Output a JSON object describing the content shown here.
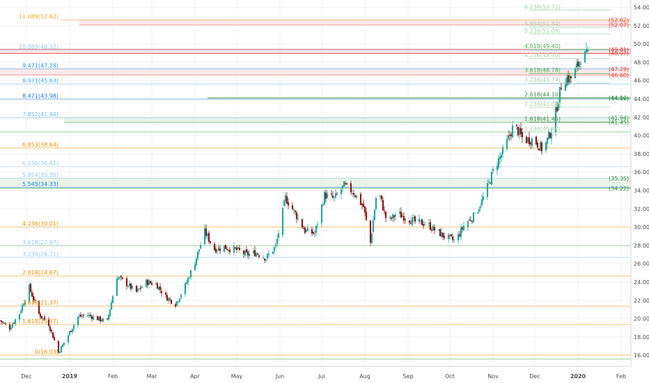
{
  "chart_data": {
    "type": "candlestick",
    "title": "",
    "ylim": [
      14.8,
      54.8
    ],
    "y_ticks": [
      16,
      18,
      20,
      22,
      24,
      26,
      28,
      30,
      32,
      34,
      36,
      38,
      40,
      42,
      44,
      46,
      48,
      50,
      52,
      54
    ],
    "x_range": [
      "2018-11-12",
      "2020-02-08"
    ],
    "x_ticks": [
      {
        "label": "Dec",
        "date": "2018-12-01"
      },
      {
        "label": "2019",
        "date": "2019-01-01"
      },
      {
        "label": "Feb",
        "date": "2019-02-01"
      },
      {
        "label": "Mar",
        "date": "2019-03-01"
      },
      {
        "label": "Apr",
        "date": "2019-04-01"
      },
      {
        "label": "May",
        "date": "2019-05-01"
      },
      {
        "label": "Jun",
        "date": "2019-06-01"
      },
      {
        "label": "Jul",
        "date": "2019-07-01"
      },
      {
        "label": "Aug",
        "date": "2019-08-01"
      },
      {
        "label": "Sep",
        "date": "2019-09-01"
      },
      {
        "label": "Oct",
        "date": "2019-10-01"
      },
      {
        "label": "Nov",
        "date": "2019-11-01"
      },
      {
        "label": "Dec",
        "date": "2019-12-01"
      },
      {
        "label": "2020",
        "date": "2020-01-01"
      },
      {
        "label": "Feb",
        "date": "2020-02-01"
      }
    ],
    "up_color": "#26a69a",
    "down_color": "#8b1a1a",
    "price_path": [
      {
        "date": "2018-11-12",
        "price": 19.8
      },
      {
        "date": "2018-11-19",
        "price": 19.0
      },
      {
        "date": "2018-11-26",
        "price": 20.6
      },
      {
        "date": "2018-12-03",
        "price": 23.4
      },
      {
        "date": "2018-12-10",
        "price": 20.5
      },
      {
        "date": "2018-12-17",
        "price": 19.4
      },
      {
        "date": "2018-12-24",
        "price": 16.3
      },
      {
        "date": "2018-12-31",
        "price": 18.2
      },
      {
        "date": "2019-01-07",
        "price": 20.2
      },
      {
        "date": "2019-01-14",
        "price": 20.4
      },
      {
        "date": "2019-01-21",
        "price": 20.0
      },
      {
        "date": "2019-01-28",
        "price": 19.7
      },
      {
        "date": "2019-02-04",
        "price": 24.6
      },
      {
        "date": "2019-02-11",
        "price": 23.8
      },
      {
        "date": "2019-02-18",
        "price": 22.9
      },
      {
        "date": "2019-02-25",
        "price": 24.0
      },
      {
        "date": "2019-03-04",
        "price": 23.8
      },
      {
        "date": "2019-03-11",
        "price": 22.4
      },
      {
        "date": "2019-03-18",
        "price": 21.6
      },
      {
        "date": "2019-03-25",
        "price": 23.6
      },
      {
        "date": "2019-04-01",
        "price": 26.2
      },
      {
        "date": "2019-04-08",
        "price": 29.5
      },
      {
        "date": "2019-04-15",
        "price": 27.6
      },
      {
        "date": "2019-04-22",
        "price": 27.8
      },
      {
        "date": "2019-05-01",
        "price": 27.5
      },
      {
        "date": "2019-05-08",
        "price": 27.0
      },
      {
        "date": "2019-05-15",
        "price": 27.2
      },
      {
        "date": "2019-05-22",
        "price": 26.6
      },
      {
        "date": "2019-05-29",
        "price": 27.9
      },
      {
        "date": "2019-06-05",
        "price": 33.2
      },
      {
        "date": "2019-06-12",
        "price": 31.5
      },
      {
        "date": "2019-06-19",
        "price": 29.6
      },
      {
        "date": "2019-06-26",
        "price": 29.3
      },
      {
        "date": "2019-07-03",
        "price": 33.5
      },
      {
        "date": "2019-07-10",
        "price": 33.1
      },
      {
        "date": "2019-07-17",
        "price": 34.5
      },
      {
        "date": "2019-07-24",
        "price": 33.8
      },
      {
        "date": "2019-07-31",
        "price": 32.2
      },
      {
        "date": "2019-08-05",
        "price": 28.3
      },
      {
        "date": "2019-08-10",
        "price": 34.4
      },
      {
        "date": "2019-08-17",
        "price": 30.5
      },
      {
        "date": "2019-08-24",
        "price": 31.5
      },
      {
        "date": "2019-08-31",
        "price": 31.0
      },
      {
        "date": "2019-09-07",
        "price": 30.5
      },
      {
        "date": "2019-09-14",
        "price": 30.4
      },
      {
        "date": "2019-09-21",
        "price": 29.6
      },
      {
        "date": "2019-09-28",
        "price": 28.9
      },
      {
        "date": "2019-10-05",
        "price": 28.5
      },
      {
        "date": "2019-10-12",
        "price": 30.4
      },
      {
        "date": "2019-10-19",
        "price": 31.3
      },
      {
        "date": "2019-10-26",
        "price": 33.5
      },
      {
        "date": "2019-11-02",
        "price": 36.5
      },
      {
        "date": "2019-11-09",
        "price": 38.5
      },
      {
        "date": "2019-11-16",
        "price": 41.2
      },
      {
        "date": "2019-11-23",
        "price": 39.5
      },
      {
        "date": "2019-11-30",
        "price": 39.6
      },
      {
        "date": "2019-12-07",
        "price": 38.4
      },
      {
        "date": "2019-12-14",
        "price": 41.0
      },
      {
        "date": "2019-12-21",
        "price": 46.2
      },
      {
        "date": "2019-12-28",
        "price": 46.3
      },
      {
        "date": "2020-01-03",
        "price": 48.5
      },
      {
        "date": "2020-01-08",
        "price": 48.8
      }
    ],
    "fib_levels_left": [
      {
        "label": "11.089(52.62)",
        "value": 52.62,
        "color": "#f5a623",
        "line_color": "#f5c98a",
        "x_start_date": "2018-12-26"
      },
      {
        "label": "10.089(49.32)",
        "value": 49.32,
        "color": "#90caf9",
        "line_color": "#b3d9f7",
        "x_start_date": "2018-11-12"
      },
      {
        "label": "9.471(47.28)",
        "value": 47.28,
        "color": "#2196f3",
        "line_color": "#8cc3f0",
        "x_start_date": "2018-11-12"
      },
      {
        "label": "8.971(45.63)",
        "value": 45.63,
        "color": "#42a5f5",
        "line_color": "#a9d3f5",
        "x_start_date": "2018-11-12"
      },
      {
        "label": "8.471(43.98)",
        "value": 43.98,
        "color": "#1976d2",
        "line_color": "#7fb5e6",
        "x_start_date": "2018-11-12"
      },
      {
        "label": "7.852(41.94)",
        "value": 41.94,
        "color": "#64b5f6",
        "line_color": "#a9d3f5",
        "x_start_date": "2018-11-12"
      },
      {
        "label": "6.853(38.64)",
        "value": 38.64,
        "color": "#ef8f00",
        "line_color": "#f3c27a",
        "x_start_date": "2018-11-12"
      },
      {
        "label": "6.236(36.61)",
        "value": 36.61,
        "color": "#90caf9",
        "line_color": "#c3e0f7",
        "x_start_date": "2018-11-12"
      },
      {
        "label": "5.854(35.35)",
        "value": 35.35,
        "color": "#90caf9",
        "line_color": "#c3e0f7",
        "x_start_date": "2018-11-12"
      },
      {
        "label": "5.545(34.33)",
        "value": 34.33,
        "color": "#1e88e5",
        "line_color": "#6fa8dc",
        "x_start_date": "2018-11-12"
      },
      {
        "label": "4.236(30.01)",
        "value": 30.01,
        "color": "#ef8f00",
        "line_color": "#f3c27a",
        "x_start_date": "2018-11-12"
      },
      {
        "label": "3.618(27.97)",
        "value": 27.97,
        "color": "#90caf9",
        "line_color": "#a5d6a7",
        "x_start_date": "2018-11-12"
      },
      {
        "label": "3.236(26.71)",
        "value": 26.71,
        "color": "#90caf9",
        "line_color": "#c3e0f7",
        "x_start_date": "2018-11-12"
      },
      {
        "label": "2.618(24.67)",
        "value": 24.67,
        "color": "#ef8f00",
        "line_color": "#f3c27a",
        "x_start_date": "2018-11-12"
      },
      {
        "label": "2.618(21.37)",
        "value": 21.37,
        "color": "#ef8f00",
        "line_color": "#f3c27a",
        "x_start_date": "2018-11-12"
      },
      {
        "label": "1.618(19.37)",
        "value": 19.37,
        "color": "#ef8f00",
        "line_color": "#f3c27a",
        "x_start_date": "2018-11-12"
      },
      {
        "label": "0(16.03)",
        "value": 16.03,
        "color": "#ef8f00",
        "line_color": "#f3c27a",
        "x_start_date": "2018-11-12"
      }
    ],
    "fib_levels_right": [
      {
        "label": "6.236(53.71)",
        "value": 53.71,
        "color": "#a5d6a7"
      },
      {
        "label": "5.854(51.84)",
        "value": 51.84,
        "color": "#a5d6a7"
      },
      {
        "label": "5.236(51.09)",
        "value": 51.09,
        "color": "#a5d6a7"
      },
      {
        "label": "4.618(49.40)",
        "value": 49.4,
        "color": "#4caf50"
      },
      {
        "label": "4.236(48.40)",
        "value": 48.4,
        "color": "#a5d6a7"
      },
      {
        "label": "3.618(46.78)",
        "value": 46.78,
        "color": "#4caf50"
      },
      {
        "label": "3.236(45.74)",
        "value": 45.74,
        "color": "#a5d6a7"
      },
      {
        "label": "2.618(44.10)",
        "value": 44.1,
        "color": "#388e3c"
      },
      {
        "label": "2.236(43.09)",
        "value": 43.09,
        "color": "#a5d6a7"
      },
      {
        "label": "1.618(41.45)",
        "value": 41.45,
        "color": "#388e3c"
      },
      {
        "label": "1.236(40.40)",
        "value": 40.4,
        "color": "#a5d6a7"
      }
    ],
    "right_labels": [
      {
        "label": "(52.62)",
        "value": 52.62,
        "color": "#e53935"
      },
      {
        "label": "(52.07)",
        "value": 52.07,
        "color": "#e53935"
      },
      {
        "label": "(49.41)",
        "value": 49.41,
        "color": "#e53935"
      },
      {
        "label": "(48.97)",
        "value": 48.97,
        "color": "#e53935"
      },
      {
        "label": "(47.29)",
        "value": 47.29,
        "color": "#e53935"
      },
      {
        "label": "(46.60)",
        "value": 46.6,
        "color": "#e53935"
      },
      {
        "label": "(44.10)",
        "value": 44.1,
        "color": "#388e3c"
      },
      {
        "label": "(44.09)",
        "value": 44.09,
        "color": "#388e3c"
      },
      {
        "label": "(41.94)",
        "value": 41.94,
        "color": "#388e3c"
      },
      {
        "label": "(41.45)",
        "value": 41.45,
        "color": "#388e3c"
      },
      {
        "label": "(35.35)",
        "value": 35.35,
        "color": "#388e3c"
      },
      {
        "label": "(34.22)",
        "value": 34.22,
        "color": "#388e3c"
      }
    ],
    "zones": [
      {
        "name": "resistance",
        "from": 52.07,
        "to": 52.62,
        "x_start_date": "2019-01-08",
        "fill": "#fbe3e3",
        "stroke": "#f08a8a"
      },
      {
        "name": "resistance",
        "from": 48.97,
        "to": 49.41,
        "x_start_date": "2018-11-12",
        "fill": "#fbe3e3",
        "stroke": "#e53935"
      },
      {
        "name": "resistance",
        "from": 46.6,
        "to": 47.29,
        "x_start_date": "2018-11-12",
        "fill": "#fbe3e3",
        "stroke": "#f08a8a"
      },
      {
        "name": "support",
        "from": 41.45,
        "to": 41.94,
        "x_start_date": "2018-12-28",
        "fill": "#e3f1e3",
        "stroke": "#81c784"
      },
      {
        "name": "support",
        "from": 34.22,
        "to": 35.35,
        "x_start_date": "2018-11-12",
        "fill": "#e3f1e3",
        "stroke": "#81c784"
      }
    ],
    "extra_lines": [
      {
        "value": 44.1,
        "color": "#388e3c",
        "x_start_date": "2019-04-10"
      },
      {
        "value": 40.4,
        "color": "#81c784",
        "x_start_date": "2018-11-12"
      },
      {
        "value": 15.6,
        "color": "#81c784",
        "x_start_date": "2018-11-12"
      }
    ],
    "grid": true,
    "legend": "none"
  }
}
